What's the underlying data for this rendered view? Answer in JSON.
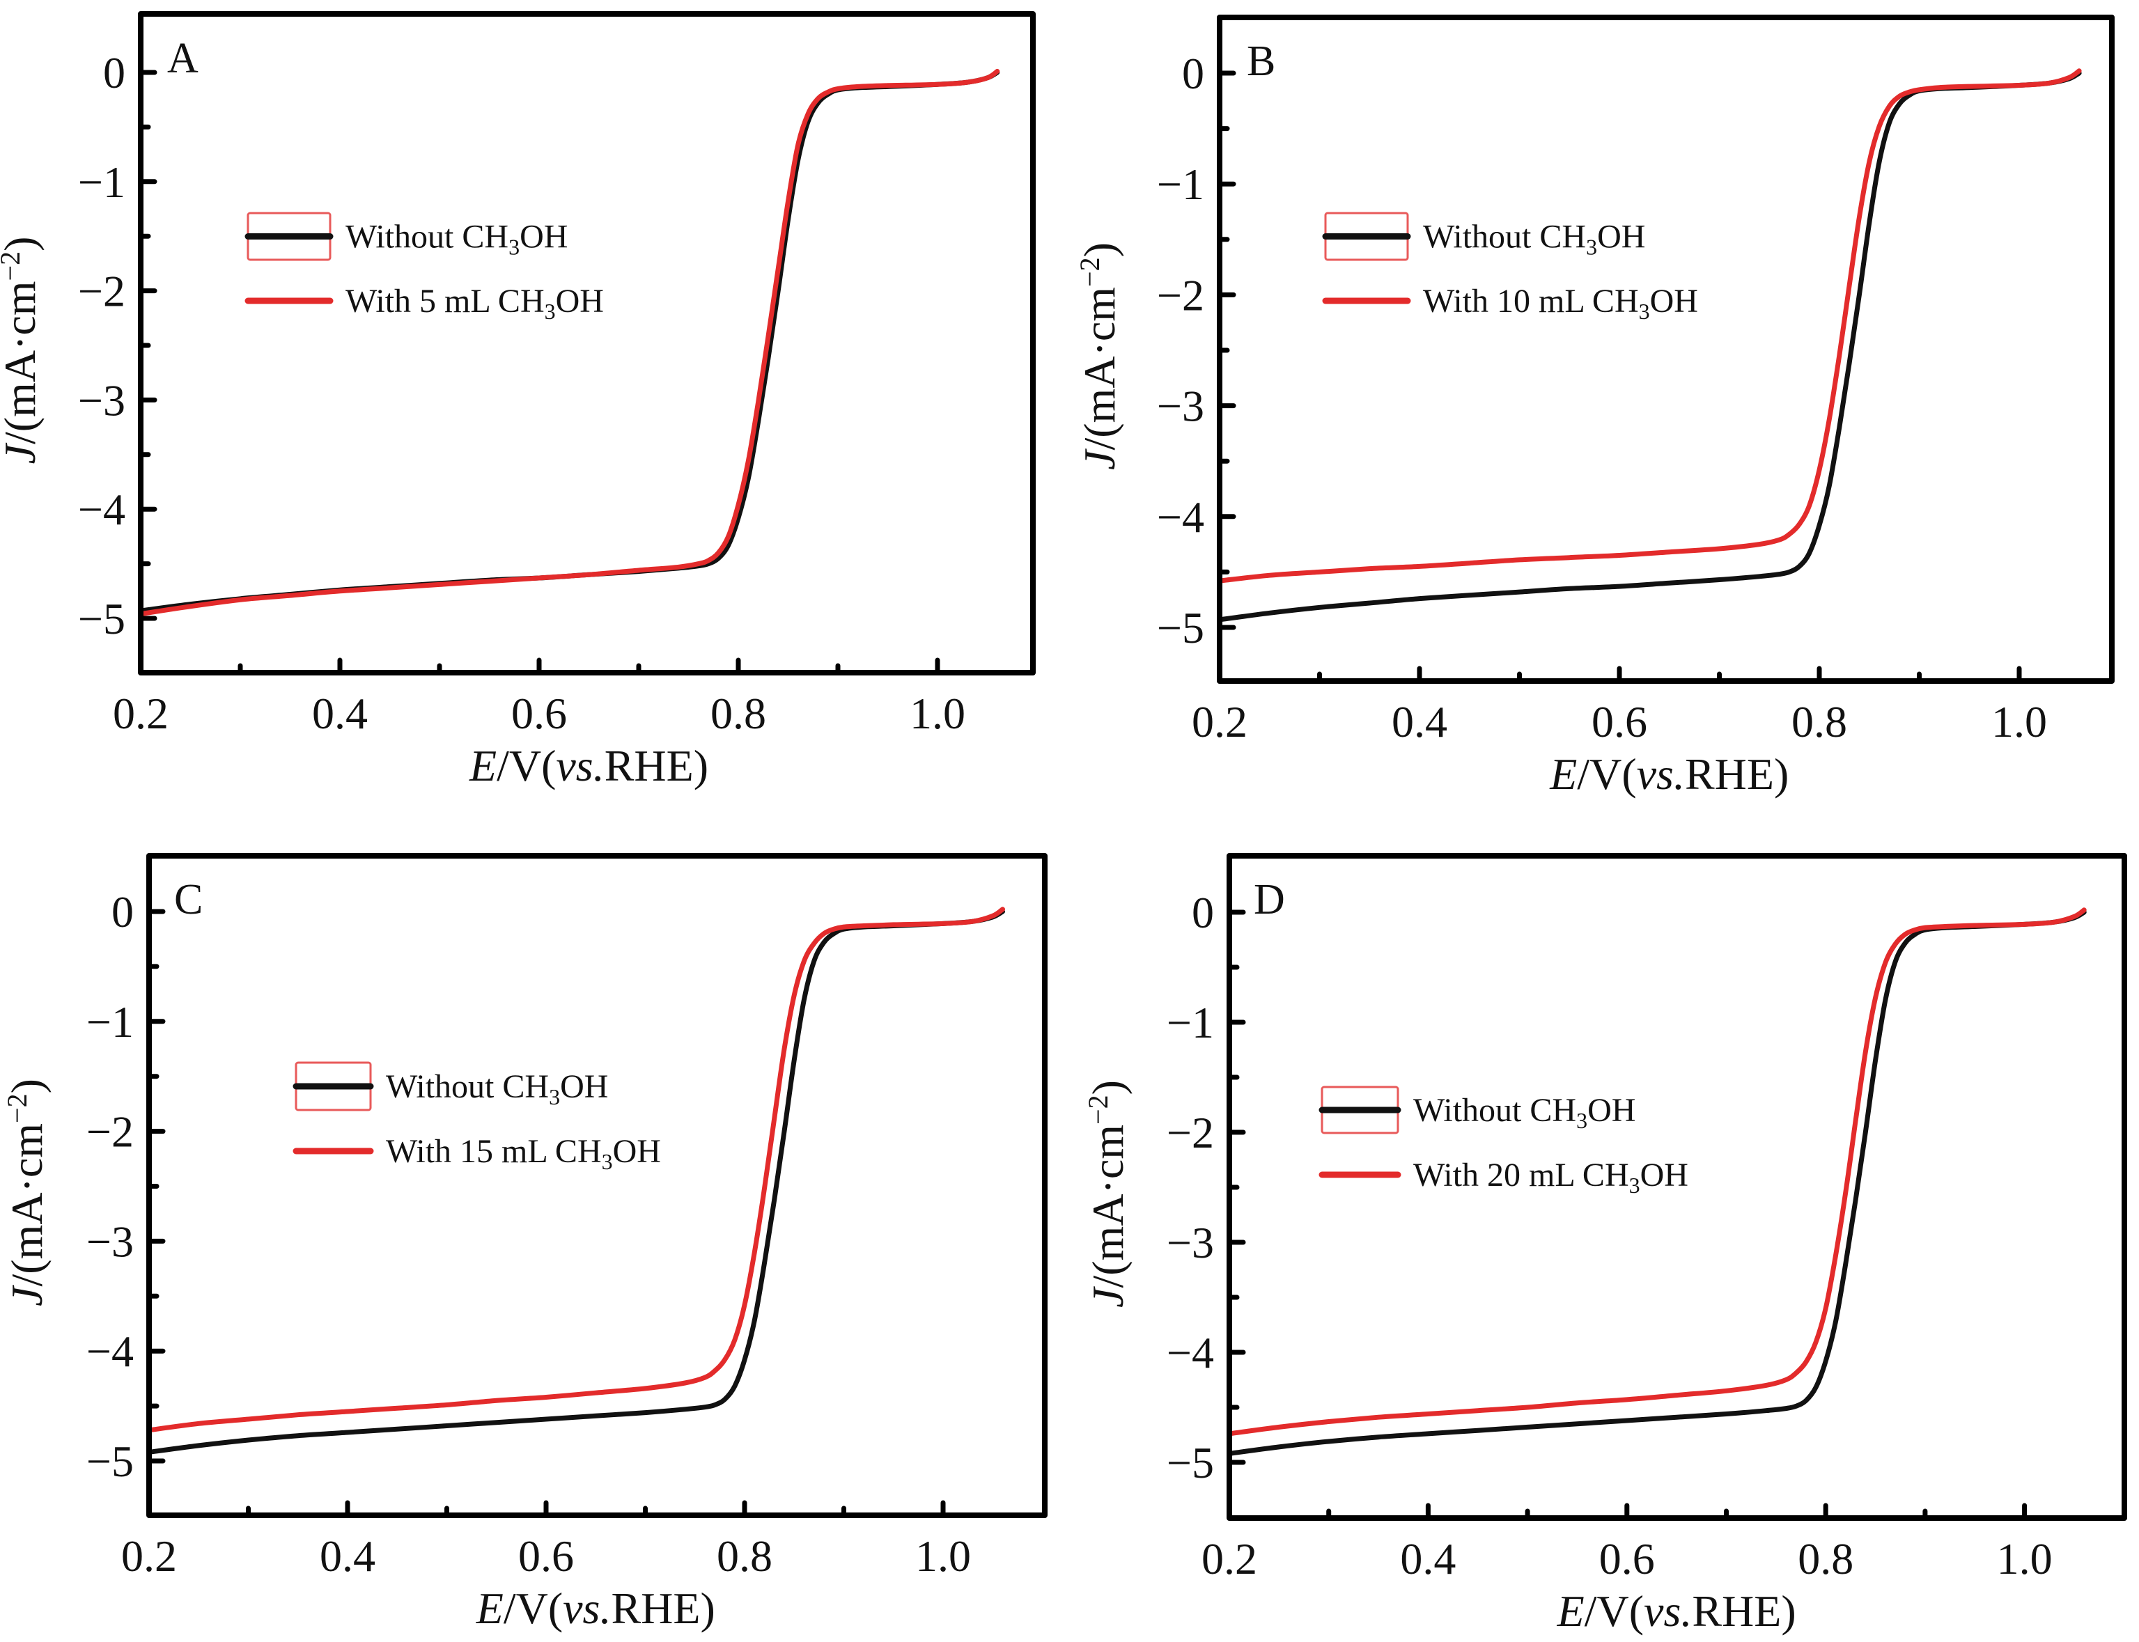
{
  "figure": {
    "panels": [
      "A",
      "B",
      "C",
      "D"
    ]
  },
  "colors": {
    "without": "#111111",
    "with": "#e32b2b",
    "legend_box": "#e85a5a",
    "axis": "#000000"
  },
  "chart_data": [
    {
      "type": "line",
      "panel_label": "A",
      "title": "",
      "xlabel": "E/V(vs.RHE)",
      "ylabel": "J/(mA·cm⁻²)",
      "xlim": [
        0.2,
        1.1
      ],
      "ylim": [
        -5.5,
        0.5
      ],
      "xticks": [
        0.2,
        0.4,
        0.6,
        0.8,
        1.0
      ],
      "xtick_labels": [
        "0.2",
        "0.4",
        "0.6",
        "0.8",
        "1.0"
      ],
      "xminor": [
        0.3,
        0.5,
        0.7,
        0.9
      ],
      "yticks": [
        0,
        -1,
        -2,
        -3,
        -4,
        -5
      ],
      "ytick_labels": [
        "0",
        "−1",
        "−2",
        "−3",
        "−4",
        "−5"
      ],
      "yminor": [
        -0.5,
        -1.5,
        -2.5,
        -3.5,
        -4.5
      ],
      "grid": false,
      "legend_position": "upper-left",
      "series": [
        {
          "name": "Without CH3OH",
          "legend_main": "Without CH",
          "legend_sub": "3",
          "legend_tail": "OH",
          "color_key": "without",
          "x": [
            0.2,
            0.25,
            0.3,
            0.35,
            0.4,
            0.45,
            0.5,
            0.55,
            0.6,
            0.65,
            0.7,
            0.74,
            0.76,
            0.77,
            0.78,
            0.79,
            0.8,
            0.81,
            0.82,
            0.83,
            0.84,
            0.85,
            0.86,
            0.87,
            0.88,
            0.89,
            0.9,
            0.92,
            0.95,
            1.0,
            1.03,
            1.05,
            1.06
          ],
          "y": [
            -4.93,
            -4.87,
            -4.82,
            -4.78,
            -4.74,
            -4.71,
            -4.68,
            -4.65,
            -4.63,
            -4.6,
            -4.57,
            -4.54,
            -4.52,
            -4.5,
            -4.45,
            -4.33,
            -4.08,
            -3.72,
            -3.2,
            -2.62,
            -2.0,
            -1.35,
            -0.8,
            -0.45,
            -0.28,
            -0.2,
            -0.16,
            -0.14,
            -0.13,
            -0.11,
            -0.09,
            -0.05,
            0.0
          ]
        },
        {
          "name": "With 5 mL CH3OH",
          "legend_main": "With 5 mL CH",
          "legend_sub": "3",
          "legend_tail": "OH",
          "color_key": "with",
          "x": [
            0.2,
            0.25,
            0.3,
            0.35,
            0.4,
            0.45,
            0.5,
            0.55,
            0.6,
            0.65,
            0.7,
            0.74,
            0.76,
            0.77,
            0.78,
            0.79,
            0.8,
            0.81,
            0.82,
            0.83,
            0.84,
            0.85,
            0.86,
            0.87,
            0.88,
            0.89,
            0.9,
            0.92,
            0.95,
            1.0,
            1.03,
            1.05,
            1.06
          ],
          "y": [
            -4.96,
            -4.89,
            -4.83,
            -4.79,
            -4.75,
            -4.72,
            -4.69,
            -4.66,
            -4.63,
            -4.6,
            -4.56,
            -4.53,
            -4.5,
            -4.47,
            -4.4,
            -4.25,
            -3.96,
            -3.56,
            -3.02,
            -2.42,
            -1.8,
            -1.18,
            -0.66,
            -0.38,
            -0.24,
            -0.18,
            -0.15,
            -0.13,
            -0.12,
            -0.11,
            -0.09,
            -0.05,
            0.01
          ]
        }
      ]
    },
    {
      "type": "line",
      "panel_label": "B",
      "title": "",
      "xlabel": "E/V(vs.RHE)",
      "ylabel": "J/(mA·cm⁻²)",
      "xlim": [
        0.2,
        1.1
      ],
      "ylim": [
        -5.5,
        0.5
      ],
      "xticks": [
        0.2,
        0.4,
        0.6,
        0.8,
        1.0
      ],
      "xtick_labels": [
        "0.2",
        "0.4",
        "0.6",
        "0.8",
        "1.0"
      ],
      "xminor": [
        0.3,
        0.5,
        0.7,
        0.9
      ],
      "yticks": [
        0,
        -1,
        -2,
        -3,
        -4,
        -5
      ],
      "ytick_labels": [
        "0",
        "−1",
        "−2",
        "−3",
        "−4",
        "−5"
      ],
      "yminor": [
        -0.5,
        -1.5,
        -2.5,
        -3.5,
        -4.5
      ],
      "grid": false,
      "legend_position": "upper-left",
      "series": [
        {
          "name": "Without CH3OH",
          "legend_main": "Without CH",
          "legend_sub": "3",
          "legend_tail": "OH",
          "color_key": "without",
          "x": [
            0.2,
            0.25,
            0.3,
            0.35,
            0.4,
            0.45,
            0.5,
            0.55,
            0.6,
            0.65,
            0.7,
            0.74,
            0.76,
            0.77,
            0.78,
            0.79,
            0.8,
            0.81,
            0.82,
            0.83,
            0.84,
            0.85,
            0.86,
            0.87,
            0.88,
            0.89,
            0.9,
            0.92,
            0.95,
            1.0,
            1.03,
            1.05,
            1.06
          ],
          "y": [
            -4.93,
            -4.87,
            -4.82,
            -4.78,
            -4.74,
            -4.71,
            -4.68,
            -4.65,
            -4.63,
            -4.6,
            -4.57,
            -4.54,
            -4.52,
            -4.5,
            -4.45,
            -4.33,
            -4.08,
            -3.72,
            -3.2,
            -2.62,
            -2.0,
            -1.35,
            -0.8,
            -0.45,
            -0.28,
            -0.2,
            -0.16,
            -0.14,
            -0.13,
            -0.11,
            -0.09,
            -0.05,
            0.0
          ]
        },
        {
          "name": "With 10 mL CH3OH",
          "legend_main": "With 10 mL CH",
          "legend_sub": "3",
          "legend_tail": "OH",
          "color_key": "with",
          "x": [
            0.2,
            0.25,
            0.3,
            0.35,
            0.4,
            0.45,
            0.5,
            0.55,
            0.6,
            0.65,
            0.7,
            0.74,
            0.76,
            0.77,
            0.78,
            0.79,
            0.8,
            0.81,
            0.82,
            0.83,
            0.84,
            0.85,
            0.86,
            0.87,
            0.88,
            0.89,
            0.9,
            0.92,
            0.95,
            1.0,
            1.03,
            1.05,
            1.06
          ],
          "y": [
            -4.58,
            -4.53,
            -4.5,
            -4.47,
            -4.45,
            -4.42,
            -4.39,
            -4.37,
            -4.35,
            -4.32,
            -4.29,
            -4.25,
            -4.21,
            -4.16,
            -4.07,
            -3.9,
            -3.58,
            -3.12,
            -2.55,
            -1.92,
            -1.3,
            -0.8,
            -0.48,
            -0.3,
            -0.21,
            -0.17,
            -0.15,
            -0.13,
            -0.12,
            -0.11,
            -0.09,
            -0.04,
            0.02
          ]
        }
      ]
    },
    {
      "type": "line",
      "panel_label": "C",
      "title": "",
      "xlabel": "E/V(vs.RHE)",
      "ylabel": "J/(mA·cm⁻²)",
      "xlim": [
        0.2,
        1.1
      ],
      "ylim": [
        -5.5,
        0.5
      ],
      "xticks": [
        0.2,
        0.4,
        0.6,
        0.8,
        1.0
      ],
      "xtick_labels": [
        "0.2",
        "0.4",
        "0.6",
        "0.8",
        "1.0"
      ],
      "xminor": [
        0.3,
        0.5,
        0.7,
        0.9
      ],
      "yticks": [
        0,
        -1,
        -2,
        -3,
        -4,
        -5
      ],
      "ytick_labels": [
        "0",
        "−1",
        "−2",
        "−3",
        "−4",
        "−5"
      ],
      "yminor": [
        -0.5,
        -1.5,
        -2.5,
        -3.5,
        -4.5
      ],
      "grid": false,
      "legend_position": "upper-left",
      "series": [
        {
          "name": "Without CH3OH",
          "legend_main": "Without CH",
          "legend_sub": "3",
          "legend_tail": "OH",
          "color_key": "without",
          "x": [
            0.2,
            0.25,
            0.3,
            0.35,
            0.4,
            0.45,
            0.5,
            0.55,
            0.6,
            0.65,
            0.7,
            0.74,
            0.76,
            0.77,
            0.78,
            0.79,
            0.8,
            0.81,
            0.82,
            0.83,
            0.84,
            0.85,
            0.86,
            0.87,
            0.88,
            0.89,
            0.9,
            0.92,
            0.95,
            1.0,
            1.03,
            1.05,
            1.06
          ],
          "y": [
            -4.92,
            -4.86,
            -4.81,
            -4.77,
            -4.74,
            -4.71,
            -4.68,
            -4.65,
            -4.62,
            -4.59,
            -4.56,
            -4.53,
            -4.51,
            -4.49,
            -4.44,
            -4.32,
            -4.08,
            -3.72,
            -3.2,
            -2.62,
            -2.0,
            -1.35,
            -0.8,
            -0.45,
            -0.28,
            -0.2,
            -0.16,
            -0.14,
            -0.13,
            -0.11,
            -0.09,
            -0.05,
            0.0
          ]
        },
        {
          "name": "With 15 mL CH3OH",
          "legend_main": "With 15 mL CH",
          "legend_sub": "3",
          "legend_tail": "OH",
          "color_key": "with",
          "x": [
            0.2,
            0.25,
            0.3,
            0.35,
            0.4,
            0.45,
            0.5,
            0.55,
            0.6,
            0.65,
            0.7,
            0.74,
            0.76,
            0.77,
            0.78,
            0.79,
            0.8,
            0.81,
            0.82,
            0.83,
            0.84,
            0.85,
            0.86,
            0.87,
            0.88,
            0.89,
            0.9,
            0.92,
            0.95,
            1.0,
            1.03,
            1.05,
            1.06
          ],
          "y": [
            -4.72,
            -4.66,
            -4.62,
            -4.58,
            -4.55,
            -4.52,
            -4.49,
            -4.45,
            -4.42,
            -4.38,
            -4.34,
            -4.29,
            -4.24,
            -4.18,
            -4.08,
            -3.9,
            -3.58,
            -3.1,
            -2.52,
            -1.88,
            -1.25,
            -0.76,
            -0.45,
            -0.29,
            -0.2,
            -0.16,
            -0.14,
            -0.13,
            -0.12,
            -0.11,
            -0.09,
            -0.04,
            0.02
          ]
        }
      ]
    },
    {
      "type": "line",
      "panel_label": "D",
      "title": "",
      "xlabel": "E/V(vs.RHE)",
      "ylabel": "J/(mA·cm⁻²)",
      "xlim": [
        0.2,
        1.1
      ],
      "ylim": [
        -5.5,
        0.5
      ],
      "xticks": [
        0.2,
        0.4,
        0.6,
        0.8,
        1.0
      ],
      "xtick_labels": [
        "0.2",
        "0.4",
        "0.6",
        "0.8",
        "1.0"
      ],
      "xminor": [
        0.3,
        0.5,
        0.7,
        0.9
      ],
      "yticks": [
        0,
        -1,
        -2,
        -3,
        -4,
        -5
      ],
      "ytick_labels": [
        "0",
        "−1",
        "−2",
        "−3",
        "−4",
        "−5"
      ],
      "yminor": [
        -0.5,
        -1.5,
        -2.5,
        -3.5,
        -4.5
      ],
      "grid": false,
      "legend_position": "upper-left",
      "series": [
        {
          "name": "Without CH3OH",
          "legend_main": "Without CH",
          "legend_sub": "3",
          "legend_tail": "OH",
          "color_key": "without",
          "x": [
            0.2,
            0.25,
            0.3,
            0.35,
            0.4,
            0.45,
            0.5,
            0.55,
            0.6,
            0.65,
            0.7,
            0.74,
            0.76,
            0.77,
            0.78,
            0.79,
            0.8,
            0.81,
            0.82,
            0.83,
            0.84,
            0.85,
            0.86,
            0.87,
            0.88,
            0.89,
            0.9,
            0.92,
            0.95,
            1.0,
            1.03,
            1.05,
            1.06
          ],
          "y": [
            -4.92,
            -4.86,
            -4.81,
            -4.77,
            -4.74,
            -4.71,
            -4.68,
            -4.65,
            -4.62,
            -4.59,
            -4.56,
            -4.53,
            -4.51,
            -4.49,
            -4.44,
            -4.32,
            -4.08,
            -3.72,
            -3.2,
            -2.62,
            -2.0,
            -1.35,
            -0.8,
            -0.45,
            -0.28,
            -0.2,
            -0.16,
            -0.14,
            -0.13,
            -0.11,
            -0.09,
            -0.05,
            0.0
          ]
        },
        {
          "name": "With 20 mL CH3OH",
          "legend_main": "With 20 mL CH",
          "legend_sub": "3",
          "legend_tail": "OH",
          "color_key": "with",
          "x": [
            0.2,
            0.25,
            0.3,
            0.35,
            0.4,
            0.45,
            0.5,
            0.55,
            0.6,
            0.65,
            0.7,
            0.74,
            0.76,
            0.77,
            0.78,
            0.79,
            0.8,
            0.81,
            0.82,
            0.83,
            0.84,
            0.85,
            0.86,
            0.87,
            0.88,
            0.89,
            0.9,
            0.92,
            0.95,
            1.0,
            1.03,
            1.05,
            1.06
          ],
          "y": [
            -4.74,
            -4.68,
            -4.63,
            -4.59,
            -4.56,
            -4.53,
            -4.5,
            -4.46,
            -4.43,
            -4.39,
            -4.35,
            -4.3,
            -4.25,
            -4.19,
            -4.09,
            -3.91,
            -3.6,
            -3.12,
            -2.55,
            -1.9,
            -1.27,
            -0.78,
            -0.46,
            -0.29,
            -0.2,
            -0.16,
            -0.14,
            -0.13,
            -0.12,
            -0.11,
            -0.09,
            -0.04,
            0.02
          ]
        }
      ]
    }
  ]
}
